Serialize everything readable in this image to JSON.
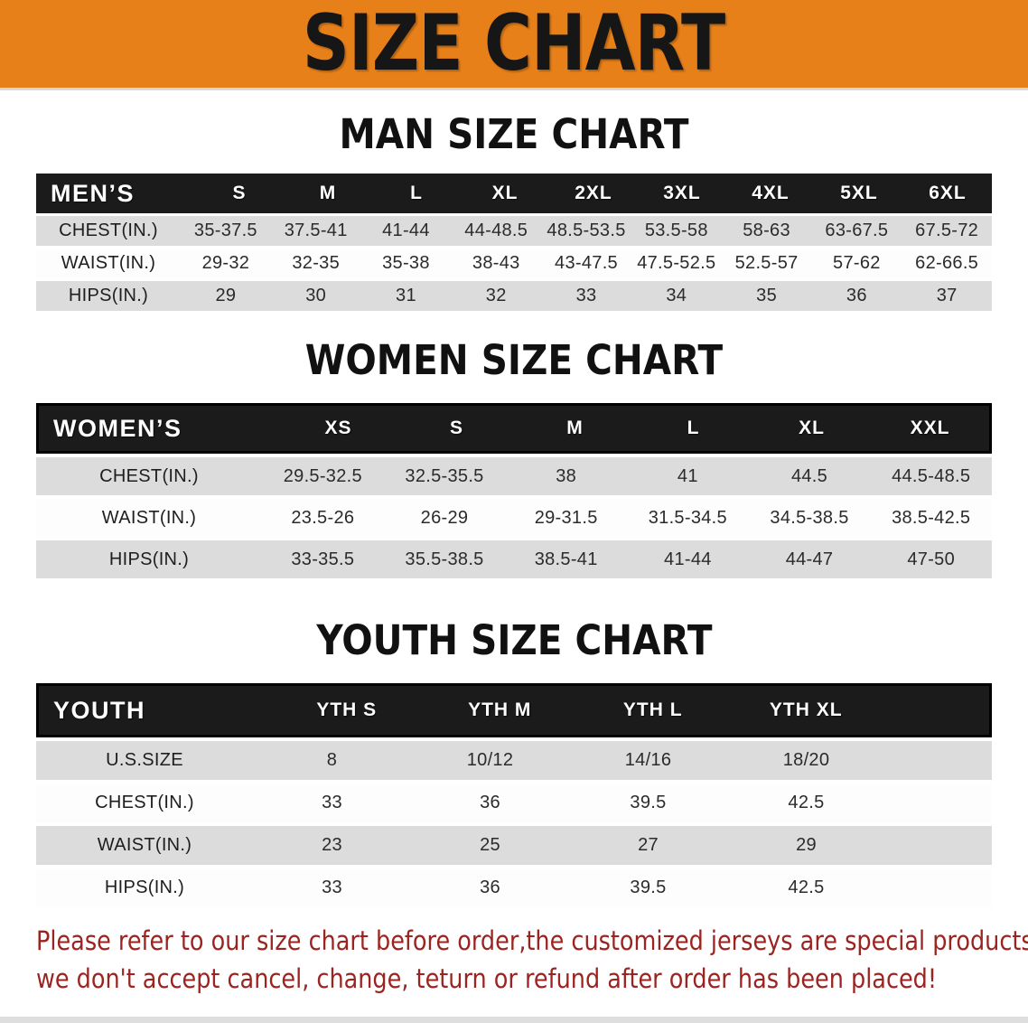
{
  "banner": {
    "title": "SIZE CHART"
  },
  "headings": {
    "men": "MAN SIZE CHART",
    "women": "WOMEN SIZE CHART",
    "youth": "YOUTH SIZE CHART"
  },
  "mens_table": {
    "header": {
      "label": "MEN’S",
      "sizes": [
        "S",
        "M",
        "L",
        "XL",
        "2XL",
        "3XL",
        "4XL",
        "5XL",
        "6XL"
      ]
    },
    "rows": [
      {
        "label": "CHEST(IN.)",
        "values": [
          "35-37.5",
          "37.5-41",
          "41-44",
          "44-48.5",
          "48.5-53.5",
          "53.5-58",
          "58-63",
          "63-67.5",
          "67.5-72"
        ]
      },
      {
        "label": "WAIST(IN.)",
        "values": [
          "29-32",
          "32-35",
          "35-38",
          "38-43",
          "43-47.5",
          "47.5-52.5",
          "52.5-57",
          "57-62",
          "62-66.5"
        ]
      },
      {
        "label": "HIPS(IN.)",
        "values": [
          "29",
          "30",
          "31",
          "32",
          "33",
          "34",
          "35",
          "36",
          "37"
        ]
      }
    ]
  },
  "womens_table": {
    "header": {
      "label": "WOMEN’S",
      "sizes": [
        "XS",
        "S",
        "M",
        "L",
        "XL",
        "XXL"
      ]
    },
    "rows": [
      {
        "label": "CHEST(IN.)",
        "values": [
          "29.5-32.5",
          "32.5-35.5",
          "38",
          "41",
          "44.5",
          "44.5-48.5"
        ]
      },
      {
        "label": "WAIST(IN.)",
        "values": [
          "23.5-26",
          "26-29",
          "29-31.5",
          "31.5-34.5",
          "34.5-38.5",
          "38.5-42.5"
        ]
      },
      {
        "label": "HIPS(IN.)",
        "values": [
          "33-35.5",
          "35.5-38.5",
          "38.5-41",
          "41-44",
          "44-47",
          "47-50"
        ]
      }
    ]
  },
  "youth_table": {
    "header": {
      "label": "YOUTH",
      "sizes": [
        "YTH S",
        "YTH M",
        "YTH L",
        "YTH XL"
      ]
    },
    "rows": [
      {
        "label": "U.S.SIZE",
        "values": [
          "8",
          "10/12",
          "14/16",
          "18/20"
        ]
      },
      {
        "label": "CHEST(IN.)",
        "values": [
          "33",
          "36",
          "39.5",
          "42.5"
        ]
      },
      {
        "label": "WAIST(IN.)",
        "values": [
          "23",
          "25",
          "27",
          "29"
        ]
      },
      {
        "label": "HIPS(IN.)",
        "values": [
          "33",
          "36",
          "39.5",
          "42.5"
        ]
      }
    ]
  },
  "disclaimer": {
    "line1": "Please refer to our size chart before order,the customized jerseys are special products,",
    "line2": "we don't accept cancel, change, teturn or refund after order has been placed!"
  },
  "colors": {
    "banner_bg": "#e8801a",
    "banner_text": "#161616",
    "table_header_bg": "#1b1b1b",
    "table_header_text": "#ffffff",
    "row_alt_bg": "#dcdcdc",
    "row_bg": "#fdfdfd",
    "disclaimer_text": "#9c2420"
  }
}
